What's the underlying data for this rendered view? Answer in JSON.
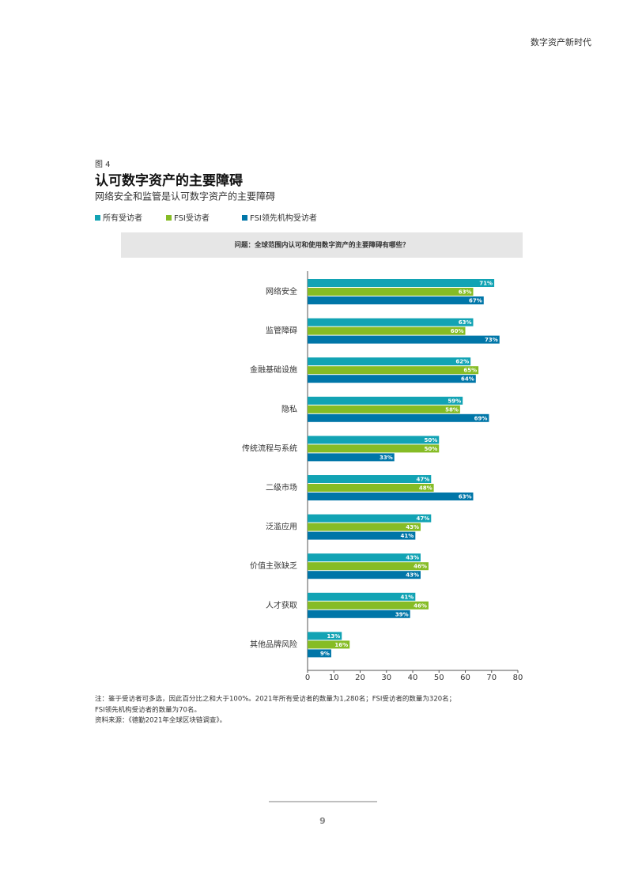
{
  "header": {
    "title": "数字资产新时代"
  },
  "figure": {
    "label": "图 4",
    "title": "认可数字资产的主要障碍",
    "subtitle": "网络安全和监管是认可数字资产的主要障碍",
    "question": "问题：全球范围内认可和使用数字资产的主要障碍有哪些？"
  },
  "chart_data": {
    "type": "hbar",
    "categories": [
      "网络安全",
      "监管障碍",
      "金融基础设施",
      "隐私",
      "传统流程与系统",
      "二级市场",
      "泛滥应用",
      "价值主张缺乏",
      "人才获取",
      "其他品牌风险"
    ],
    "series": [
      {
        "name": "所有受访者",
        "color": "#12a3b4",
        "values": [
          71,
          63,
          62,
          59,
          50,
          47,
          47,
          43,
          41,
          13
        ],
        "value_labels": [
          "71%",
          "63%",
          "62%",
          "59%",
          "50%",
          "47%",
          "47%",
          "43%",
          "41%",
          "13%"
        ]
      },
      {
        "name": "FSI受访者",
        "color": "#86bc25",
        "values": [
          63,
          60,
          65,
          58,
          50,
          48,
          43,
          46,
          46,
          16
        ],
        "value_labels": [
          "63%",
          "60%",
          "65%",
          "58%",
          "50%",
          "48%",
          "43%",
          "46%",
          "46%",
          "16%"
        ]
      },
      {
        "name": "FSI领先机构受访者",
        "color": "#0076a8",
        "values": [
          67,
          73,
          64,
          69,
          33,
          63,
          41,
          43,
          39,
          9
        ],
        "value_labels": [
          "67%",
          "73%",
          "64%",
          "69%",
          "33%",
          "63%",
          "41%",
          "43%",
          "39%",
          "9%"
        ]
      }
    ],
    "xlim": [
      0,
      80
    ],
    "xticks": [
      0,
      10,
      20,
      30,
      40,
      50,
      60,
      70,
      80
    ],
    "grid": false
  },
  "notes": [
    "注：鉴于受访者可多选，因此百分比之和大于100%。2021年所有受访者的数量为1,280名；FSI受访者的数量为320名；",
    "FSI领先机构受访者的数量为70名。",
    "资料来源：《德勤2021年全球区块链调查》。"
  ],
  "footer": {
    "page": "9"
  }
}
